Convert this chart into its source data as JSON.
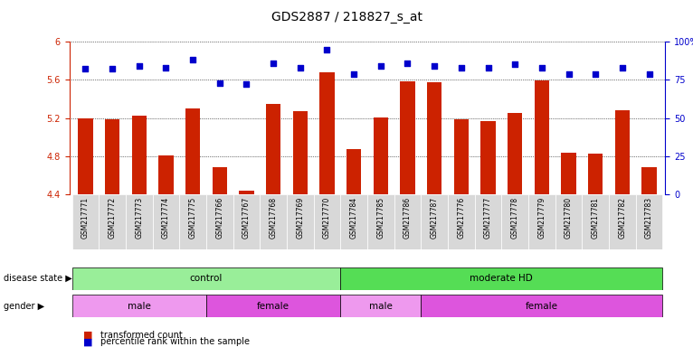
{
  "title": "GDS2887 / 218827_s_at",
  "samples": [
    "GSM217771",
    "GSM217772",
    "GSM217773",
    "GSM217774",
    "GSM217775",
    "GSM217766",
    "GSM217767",
    "GSM217768",
    "GSM217769",
    "GSM217770",
    "GSM217784",
    "GSM217785",
    "GSM217786",
    "GSM217787",
    "GSM217776",
    "GSM217777",
    "GSM217778",
    "GSM217779",
    "GSM217780",
    "GSM217781",
    "GSM217782",
    "GSM217783"
  ],
  "bar_values": [
    5.2,
    5.19,
    5.22,
    4.81,
    5.3,
    4.68,
    4.44,
    5.35,
    5.27,
    5.68,
    4.87,
    5.21,
    5.58,
    5.57,
    5.19,
    5.17,
    5.25,
    5.59,
    4.84,
    4.83,
    5.28,
    4.68
  ],
  "dot_values": [
    82,
    82,
    84,
    83,
    88,
    73,
    72,
    86,
    83,
    95,
    79,
    84,
    86,
    84,
    83,
    83,
    85,
    83,
    79,
    79,
    83,
    79
  ],
  "ylim_left": [
    4.4,
    6.0
  ],
  "ylim_right": [
    0,
    100
  ],
  "yticks_left": [
    4.4,
    4.8,
    5.2,
    5.6,
    6.0
  ],
  "ytick_labels_left": [
    "4.4",
    "4.8",
    "5.2",
    "5.6",
    "6"
  ],
  "yticks_right": [
    0,
    25,
    50,
    75,
    100
  ],
  "ytick_labels_right": [
    "0",
    "25",
    "50",
    "75",
    "100%"
  ],
  "bar_color": "#cc2200",
  "dot_color": "#0000cc",
  "grid_color": "#999999",
  "disease_state_groups": [
    {
      "label": "control",
      "start": 0,
      "end": 10,
      "color": "#99ee99"
    },
    {
      "label": "moderate HD",
      "start": 10,
      "end": 22,
      "color": "#55dd55"
    }
  ],
  "gender_groups": [
    {
      "label": "male",
      "start": 0,
      "end": 5,
      "color": "#ee99ee"
    },
    {
      "label": "female",
      "start": 5,
      "end": 10,
      "color": "#dd55dd"
    },
    {
      "label": "male",
      "start": 10,
      "end": 13,
      "color": "#ee99ee"
    },
    {
      "label": "female",
      "start": 13,
      "end": 22,
      "color": "#dd55dd"
    }
  ],
  "legend_items": [
    {
      "label": "transformed count",
      "color": "#cc2200",
      "marker": "s"
    },
    {
      "label": "percentile rank within the sample",
      "color": "#0000cc",
      "marker": "s"
    }
  ],
  "bg_color": "#ffffff",
  "tick_label_gray": "#888888"
}
